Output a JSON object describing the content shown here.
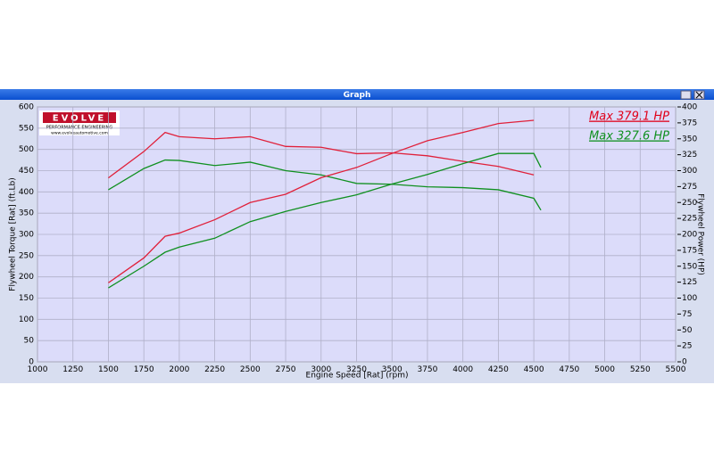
{
  "chart_data": {
    "type": "line",
    "window_title": "Graph",
    "xlabel": "Engine Speed [Rat] (rpm)",
    "ylabel": "Flywheel Torque [Rat] (ft.Lb)",
    "y2label": "Flywheel Power (HP)",
    "logo": {
      "name": "EVOLVE",
      "subtitle": "PERFORMANCE ENGINEERING",
      "url": "www.evolveautomotive.com"
    },
    "annotations": [
      {
        "text": "Max 379.1 HP",
        "color": "#e0001a"
      },
      {
        "text": "Max 327.6 HP",
        "color": "#109020"
      }
    ],
    "x": [
      1500,
      1750,
      1900,
      2000,
      2250,
      2500,
      2750,
      3000,
      3250,
      3500,
      3750,
      4000,
      4250,
      4500,
      4550
    ],
    "series": [
      {
        "color": "#e0203a",
        "values": [
          433,
          495,
          540,
          530,
          525,
          530,
          507,
          505,
          490,
          492,
          485,
          472,
          460,
          440,
          null
        ]
      },
      {
        "color": "#109020",
        "values": [
          405,
          455,
          475,
          474,
          462,
          470,
          450,
          440,
          420,
          418,
          412,
          410,
          405,
          385,
          357
        ]
      },
      {
        "color": "#e0203a",
        "axis": "y2",
        "values": [
          124,
          163,
          197,
          202,
          223,
          250,
          263,
          289,
          305,
          327,
          347,
          360,
          374,
          379,
          null
        ]
      },
      {
        "color": "#109020",
        "axis": "y2",
        "values": [
          116,
          150,
          172,
          180,
          194,
          220,
          236,
          250,
          262,
          279,
          294,
          311,
          327,
          327,
          305
        ]
      }
    ],
    "xlim": [
      1000,
      5500
    ],
    "xticks": [
      1000,
      1250,
      1500,
      1750,
      2000,
      2250,
      2500,
      2750,
      3000,
      3250,
      3500,
      3750,
      4000,
      4250,
      4500,
      4750,
      5000,
      5250,
      5500
    ],
    "ylim": [
      0,
      600
    ],
    "yticks": [
      0,
      50,
      100,
      150,
      200,
      250,
      300,
      350,
      400,
      450,
      500,
      550,
      600
    ],
    "y2lim": [
      0,
      400
    ],
    "y2ticks": [
      0,
      25,
      50,
      75,
      100,
      125,
      150,
      175,
      200,
      225,
      250,
      275,
      300,
      325,
      350,
      375,
      400
    ],
    "grid": true
  }
}
